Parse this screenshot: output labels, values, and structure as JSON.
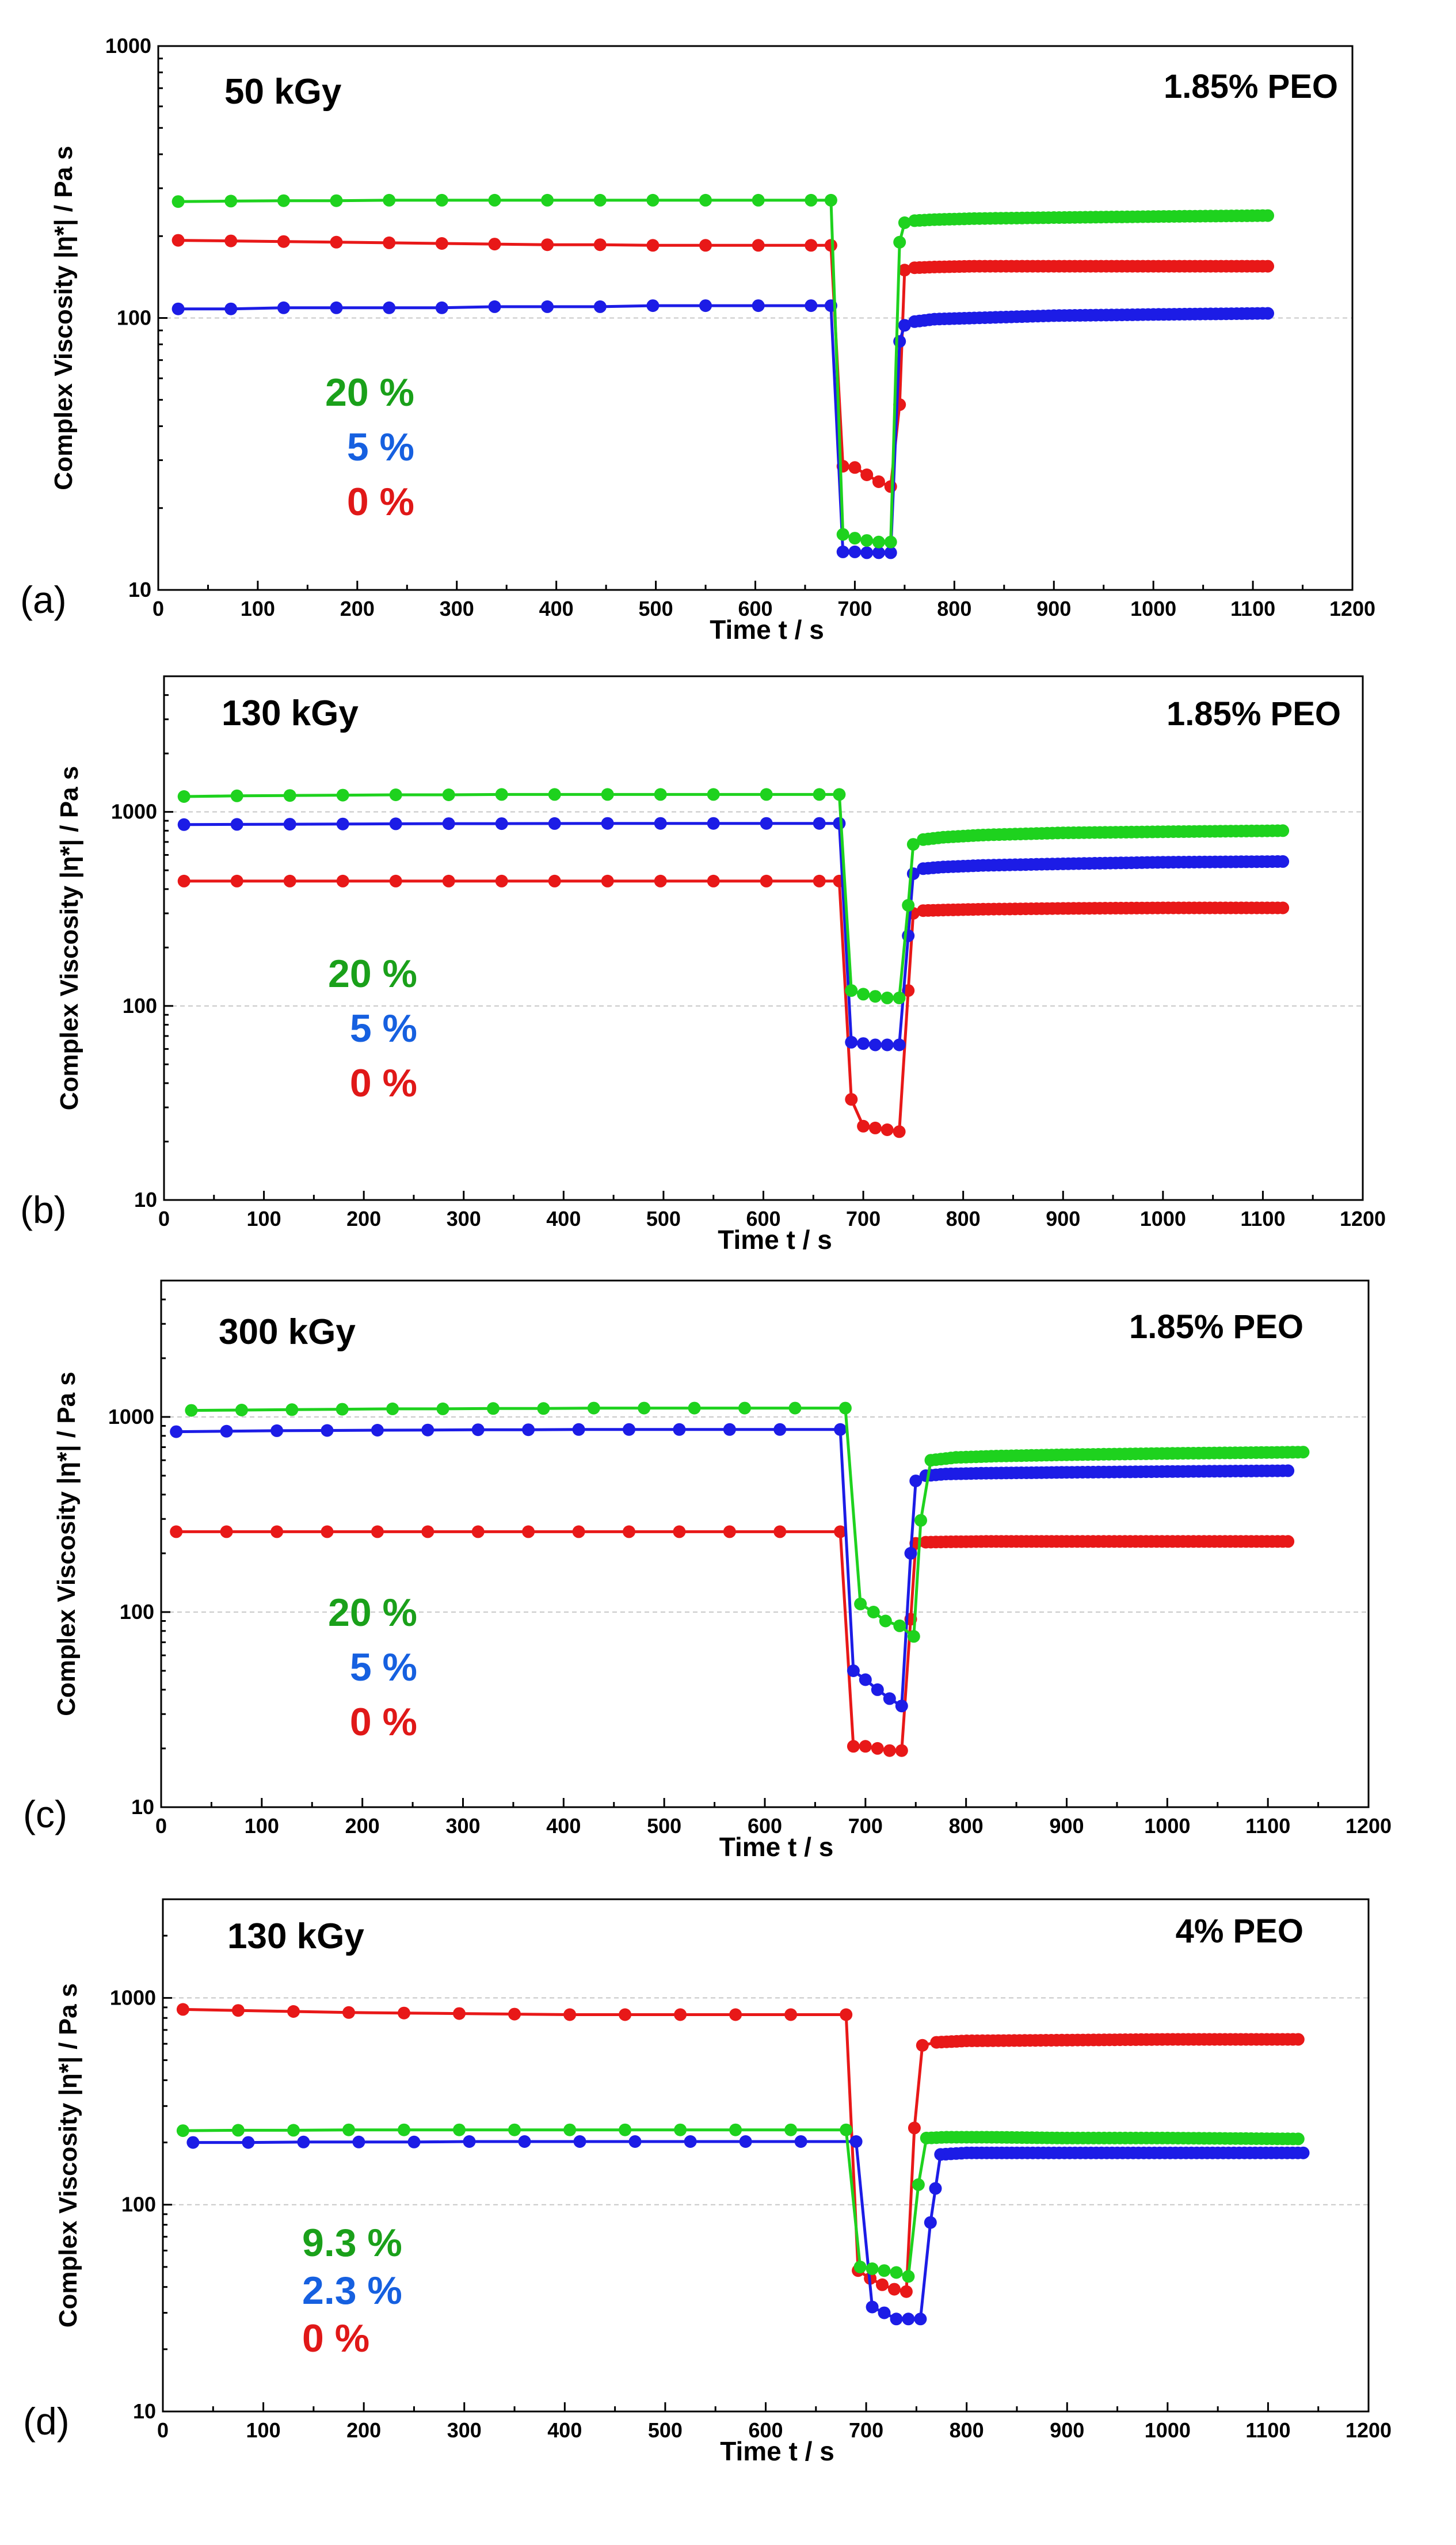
{
  "figure": {
    "xlabel": "Time t / s",
    "ylabel": "Complex Viscosity |η*| / Pa s"
  },
  "colors": {
    "green": "#1ed21e",
    "blue": "#1c1ce6",
    "red": "#e81818",
    "green_text": "#1aa01a",
    "blue_text": "#1660e0",
    "red_text": "#e01818"
  },
  "chart_data": [
    {
      "type": "line",
      "panel_label": "(a)",
      "title": "50 kGy",
      "annotation": "1.85% PEO",
      "xlabel": "Time t / s",
      "ylabel": "Complex Viscosity |η*| / Pa s",
      "xlim": [
        0,
        1200
      ],
      "ylim": [
        10,
        1000
      ],
      "yscale": "log",
      "xticks": [
        "0",
        "100",
        "200",
        "300",
        "400",
        "500",
        "600",
        "700",
        "800",
        "900",
        "1000",
        "1100",
        "1200"
      ],
      "yticks": [
        "10",
        "100",
        "1000"
      ],
      "legend": [
        "20 %",
        "5 %",
        "0 %"
      ],
      "series": [
        {
          "name": "20 %",
          "color": "#1ed21e",
          "x": [
            20,
            73,
            126,
            179,
            232,
            285,
            338,
            391,
            444,
            497,
            550,
            603,
            656,
            676,
            688,
            700,
            712,
            724,
            736,
            745,
            750,
            760,
            780,
            820,
            900,
            1000,
            1115
          ],
          "y": [
            268,
            269,
            270,
            270,
            271,
            271,
            271,
            271,
            271,
            271,
            271,
            271,
            271,
            271,
            16,
            15.5,
            15.2,
            15,
            15,
            190,
            224,
            228,
            230,
            232,
            234,
            236,
            238
          ]
        },
        {
          "name": "5 %",
          "color": "#1c1ce6",
          "x": [
            20,
            73,
            126,
            179,
            232,
            285,
            338,
            391,
            444,
            497,
            550,
            603,
            656,
            676,
            688,
            700,
            712,
            724,
            736,
            745,
            750,
            760,
            780,
            820,
            900,
            1000,
            1115
          ],
          "y": [
            108,
            108,
            109,
            109,
            109,
            109,
            110,
            110,
            110,
            111,
            111,
            111,
            111,
            111,
            13.8,
            13.8,
            13.7,
            13.7,
            13.7,
            82,
            94,
            97,
            99,
            100,
            102,
            103,
            104
          ]
        },
        {
          "name": "0 %",
          "color": "#e81818",
          "x": [
            20,
            73,
            126,
            179,
            232,
            285,
            338,
            391,
            444,
            497,
            550,
            603,
            656,
            676,
            688,
            700,
            712,
            724,
            736,
            745,
            750,
            760,
            780,
            820,
            900,
            1000,
            1115
          ],
          "y": [
            193,
            192,
            191,
            190,
            189,
            188,
            187,
            186,
            186,
            185,
            185,
            185,
            185,
            185,
            28.5,
            28.2,
            26.5,
            25,
            24,
            48,
            150,
            153,
            154,
            155,
            155,
            155,
            155
          ]
        }
      ]
    },
    {
      "type": "line",
      "panel_label": "(b)",
      "title": "130 kGy",
      "annotation": "1.85% PEO",
      "xlabel": "Time t / s",
      "ylabel": "Complex Viscosity |η*| / Pa s",
      "xlim": [
        0,
        1200
      ],
      "ylim": [
        10,
        5000
      ],
      "yscale": "log",
      "xticks": [
        "0",
        "100",
        "200",
        "300",
        "400",
        "500",
        "600",
        "700",
        "800",
        "900",
        "1000",
        "1100",
        "1200"
      ],
      "yticks": [
        "10",
        "100",
        "1000"
      ],
      "legend": [
        "20 %",
        "5 %",
        "0 %"
      ],
      "series": [
        {
          "name": "20 %",
          "color": "#1ed21e",
          "x": [
            20,
            73,
            126,
            179,
            232,
            285,
            338,
            391,
            444,
            497,
            550,
            603,
            656,
            676,
            688,
            700,
            712,
            724,
            736,
            745,
            750,
            760,
            780,
            820,
            900,
            1000,
            1120
          ],
          "y": [
            1200,
            1210,
            1215,
            1220,
            1225,
            1225,
            1230,
            1230,
            1230,
            1230,
            1230,
            1230,
            1230,
            1230,
            120,
            115,
            112,
            110,
            110,
            330,
            680,
            720,
            740,
            760,
            780,
            790,
            800
          ]
        },
        {
          "name": "5 %",
          "color": "#1c1ce6",
          "x": [
            20,
            73,
            126,
            179,
            232,
            285,
            338,
            391,
            444,
            497,
            550,
            603,
            656,
            676,
            688,
            700,
            712,
            724,
            736,
            745,
            750,
            760,
            780,
            820,
            900,
            1000,
            1120
          ],
          "y": [
            860,
            862,
            864,
            866,
            868,
            870,
            870,
            871,
            872,
            872,
            872,
            872,
            872,
            872,
            65,
            64,
            63,
            63,
            63,
            230,
            480,
            510,
            520,
            530,
            540,
            550,
            555
          ]
        },
        {
          "name": "0 %",
          "color": "#e81818",
          "x": [
            20,
            73,
            126,
            179,
            232,
            285,
            338,
            391,
            444,
            497,
            550,
            603,
            656,
            676,
            688,
            700,
            712,
            724,
            736,
            745,
            750,
            760,
            780,
            820,
            900,
            1000,
            1120
          ],
          "y": [
            440,
            440,
            440,
            440,
            440,
            440,
            440,
            440,
            440,
            440,
            440,
            440,
            440,
            440,
            33,
            24,
            23.5,
            23,
            22.5,
            120,
            300,
            310,
            312,
            315,
            318,
            320,
            320
          ]
        }
      ]
    },
    {
      "type": "line",
      "panel_label": "(c)",
      "title": "300 kGy",
      "annotation": "1.85% PEO",
      "xlabel": "Time t / s",
      "ylabel": "Complex Viscosity |η*| / Pa s",
      "xlim": [
        0,
        1200
      ],
      "ylim": [
        10,
        5000
      ],
      "yscale": "log",
      "xticks": [
        "0",
        "100",
        "200",
        "300",
        "400",
        "500",
        "600",
        "700",
        "800",
        "900",
        "1000",
        "1100",
        "1200"
      ],
      "yticks": [
        "10",
        "100",
        "1000"
      ],
      "legend": [
        "20 %",
        "5 %",
        "0 %"
      ],
      "series": [
        {
          "name": "20 %",
          "color": "#1ed21e",
          "x": [
            30,
            80,
            130,
            180,
            230,
            280,
            330,
            380,
            430,
            480,
            530,
            580,
            630,
            680,
            695,
            708,
            720,
            734,
            748,
            755,
            765,
            790,
            830,
            900,
            1000,
            1135
          ],
          "y": [
            1080,
            1085,
            1090,
            1095,
            1100,
            1100,
            1105,
            1105,
            1110,
            1110,
            1110,
            1110,
            1110,
            1110,
            110,
            100,
            90,
            85,
            75,
            295,
            600,
            620,
            630,
            640,
            650,
            660
          ]
        },
        {
          "name": "5 %",
          "color": "#1c1ce6",
          "x": [
            15,
            65,
            115,
            165,
            215,
            265,
            315,
            365,
            415,
            465,
            515,
            565,
            615,
            675,
            688,
            700,
            712,
            724,
            736,
            745,
            750,
            760,
            780,
            820,
            900,
            1000,
            1120
          ],
          "y": [
            840,
            845,
            850,
            852,
            855,
            857,
            860,
            860,
            862,
            862,
            862,
            862,
            862,
            862,
            50,
            45,
            40,
            36,
            33,
            200,
            470,
            500,
            510,
            515,
            520,
            525,
            530
          ]
        },
        {
          "name": "0 %",
          "color": "#e81818",
          "x": [
            15,
            65,
            115,
            165,
            215,
            265,
            315,
            365,
            415,
            465,
            515,
            565,
            615,
            675,
            688,
            700,
            712,
            724,
            736,
            745,
            750,
            760,
            780,
            820,
            900,
            1000,
            1120
          ],
          "y": [
            258,
            258,
            258,
            258,
            258,
            258,
            258,
            258,
            258,
            258,
            258,
            258,
            258,
            258,
            20.5,
            20.5,
            20,
            19.5,
            19.5,
            92,
            225,
            228,
            229,
            230,
            230,
            230,
            230
          ]
        }
      ]
    },
    {
      "type": "line",
      "panel_label": "(d)",
      "title": "130 kGy",
      "annotation": "4% PEO",
      "xlabel": "Time t / s",
      "ylabel": "Complex Viscosity |η*| / Pa s",
      "xlim": [
        0,
        1200
      ],
      "ylim": [
        10,
        3000
      ],
      "yscale": "log",
      "xticks": [
        "0",
        "100",
        "200",
        "300",
        "400",
        "500",
        "600",
        "700",
        "800",
        "900",
        "1000",
        "1100",
        "1200"
      ],
      "yticks": [
        "10",
        "100",
        "1000"
      ],
      "legend": [
        "9.3 %",
        "2.3 %",
        "0 %"
      ],
      "series": [
        {
          "name": "9.3 %",
          "color": "#1ed21e",
          "x": [
            20,
            75,
            130,
            185,
            240,
            295,
            350,
            405,
            460,
            515,
            570,
            625,
            680,
            694,
            706,
            718,
            730,
            742,
            752,
            760,
            780,
            820,
            900,
            1000,
            1130
          ],
          "y": [
            228,
            229,
            229,
            230,
            230,
            230,
            230,
            230,
            230,
            230,
            230,
            230,
            230,
            50,
            49,
            48,
            47,
            45,
            125,
            210,
            212,
            212,
            210,
            210,
            208
          ]
        },
        {
          "name": "2.3 %",
          "color": "#1c1ce6",
          "x": [
            30,
            85,
            140,
            195,
            250,
            305,
            360,
            415,
            470,
            525,
            580,
            635,
            690,
            706,
            718,
            730,
            742,
            754,
            764,
            774,
            800,
            850,
            950,
            1050,
            1135
          ],
          "y": [
            200,
            200,
            201,
            201,
            201,
            202,
            202,
            202,
            202,
            202,
            202,
            202,
            202,
            32,
            30,
            28,
            28,
            28,
            82,
            175,
            178,
            178,
            178,
            178,
            178
          ]
        },
        {
          "name": "0 %",
          "color": "#e81818",
          "x": [
            20,
            75,
            130,
            185,
            240,
            295,
            350,
            405,
            460,
            515,
            570,
            625,
            680,
            692,
            704,
            716,
            728,
            740,
            748,
            756,
            770,
            800,
            900,
            1000,
            1130
          ],
          "y": [
            880,
            870,
            860,
            850,
            845,
            840,
            835,
            830,
            830,
            830,
            830,
            830,
            830,
            48,
            44,
            41,
            39,
            38,
            235,
            590,
            610,
            620,
            625,
            630,
            630
          ]
        }
      ]
    }
  ]
}
